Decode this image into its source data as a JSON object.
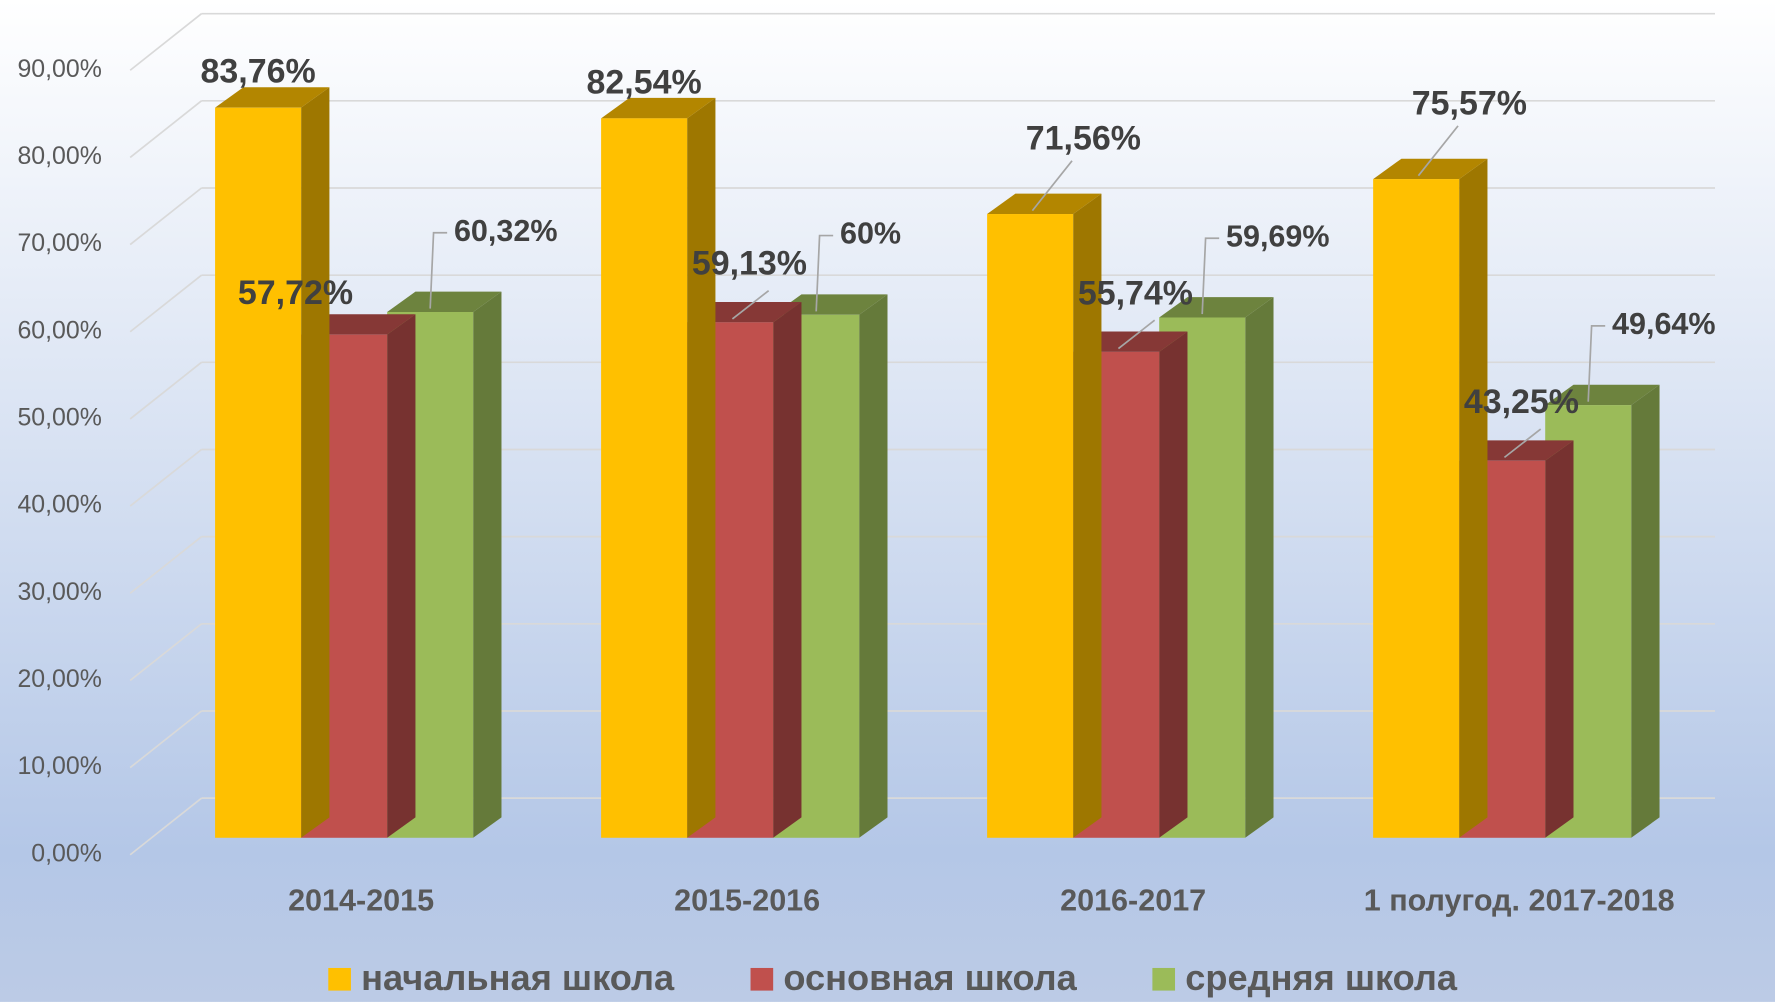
{
  "chart_data": {
    "type": "bar3d",
    "categories": [
      "2014-2015",
      "2015-2016",
      "2016-2017",
      "1 полугод. 2017-2018"
    ],
    "series": [
      {
        "name": "начальная школа",
        "color": "#ffc000",
        "values": [
          83.76,
          82.54,
          71.56,
          75.57
        ],
        "value_labels": [
          "83,76%",
          "82,54%",
          "71,56%",
          "75,57%"
        ]
      },
      {
        "name": "основная школа",
        "color": "#c0504d",
        "values": [
          57.72,
          59.13,
          55.74,
          43.25
        ],
        "value_labels": [
          "57,72%",
          "59,13%",
          "55,74%",
          "43,25%"
        ]
      },
      {
        "name": "средняя школа",
        "color": "#9bbb59",
        "values": [
          60.32,
          60,
          59.69,
          49.64
        ],
        "value_labels": [
          "60,32%",
          "60%",
          "59,69%",
          "49,64%"
        ]
      }
    ],
    "ylim": [
      0,
      90
    ],
    "yticks": [
      {
        "value": 0,
        "label": "0,00%"
      },
      {
        "value": 10,
        "label": "10,00%"
      },
      {
        "value": 20,
        "label": "20,00%"
      },
      {
        "value": 30,
        "label": "30,00%"
      },
      {
        "value": 40,
        "label": "40,00%"
      },
      {
        "value": 50,
        "label": "50,00%"
      },
      {
        "value": 60,
        "label": "60,00%"
      },
      {
        "value": 70,
        "label": "70,00%"
      },
      {
        "value": 80,
        "label": "80,00%"
      },
      {
        "value": 90,
        "label": "90,00%"
      }
    ],
    "grid": true,
    "legend": "bottom"
  }
}
